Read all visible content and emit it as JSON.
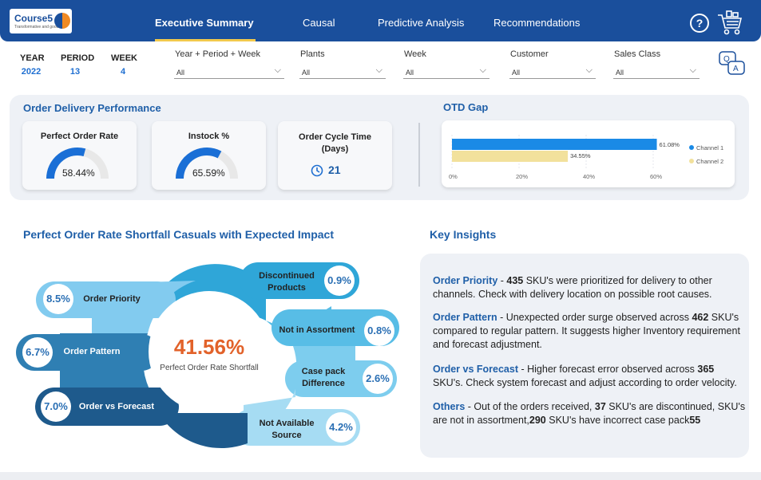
{
  "header": {
    "logo_name": "Course5",
    "logo_tagline": "Transformative and good",
    "tabs": [
      "Executive Summary",
      "Causal",
      "Predictive Analysis",
      "Recommendations"
    ],
    "help": "?"
  },
  "filters": {
    "year": {
      "label": "YEAR",
      "value": "2022"
    },
    "period": {
      "label": "PERIOD",
      "value": "13"
    },
    "week": {
      "label": "WEEK",
      "value": "4"
    },
    "slicers": [
      {
        "label": "Year + Period + Week",
        "value": "All"
      },
      {
        "label": "Plants",
        "value": "All"
      },
      {
        "label": "Week",
        "value": "All"
      },
      {
        "label": "Customer",
        "value": "All"
      },
      {
        "label": "Sales Class",
        "value": "All"
      }
    ],
    "qa_label": "Q A"
  },
  "delivery": {
    "title": "Order Delivery Performance",
    "perfect_order_rate": {
      "title": "Perfect Order Rate",
      "value": "58.44%",
      "fraction": 0.5844
    },
    "instock": {
      "title": "Instock %",
      "value": "65.59%",
      "fraction": 0.6559
    },
    "cycle_time": {
      "title": "Order Cycle Time (Days)",
      "value": "21"
    }
  },
  "otd": {
    "title": "OTD Gap"
  },
  "chart_data": {
    "type": "bar",
    "orientation": "horizontal",
    "title": "OTD Gap",
    "series": [
      {
        "name": "Channel 1",
        "values": [
          61.08
        ],
        "label": "61.08%",
        "color": "#1a8ae6"
      },
      {
        "name": "Channel 2",
        "values": [
          34.55
        ],
        "label": "34.55%",
        "color": "#f2e19c"
      }
    ],
    "xticks": [
      "0%",
      "20%",
      "40%",
      "60%"
    ],
    "xlim": [
      0,
      70
    ],
    "legend": "right"
  },
  "shortfall": {
    "title": "Perfect Order Rate Shortfall Casuals with Expected Impact",
    "center_value": "41.56%",
    "center_label": "Perfect Order Rate Shortfall",
    "left_items": [
      {
        "label": "Order Priority",
        "value": "8.5%"
      },
      {
        "label": "Order Pattern",
        "value": "6.7%"
      },
      {
        "label": "Order vs Forecast",
        "value": "7.0%"
      }
    ],
    "right_items": [
      {
        "label": "Discontinued Products",
        "value": "0.9%"
      },
      {
        "label": "Not in Assortment",
        "value": "0.8%"
      },
      {
        "label": "Case pack Difference",
        "value": "2.6%"
      },
      {
        "label": "Not Available Source",
        "value": "4.2%"
      }
    ]
  },
  "insights": {
    "title": "Key Insights",
    "items": [
      {
        "heading": "Order Priority",
        "pre": " - ",
        "num": "435",
        "text": " SKU's were prioritized for delivery to other channels. Check with delivery location on possible root causes."
      },
      {
        "heading": "Order Pattern",
        "pre": " - Unexpected order surge observed across ",
        "num": "462",
        "text": " SKU's compared to regular pattern. It suggests higher Inventory requirement and forecast adjustment."
      },
      {
        "heading": "Order vs Forecast",
        "pre": " - Higher forecast error observed across ",
        "num": "365",
        "text": " SKU's. Check system forecast and adjust according to order velocity."
      }
    ],
    "others": {
      "heading": "Others",
      "t1": " - Out of the orders received, ",
      "n1": "37",
      "t2": " SKU's are discontinued, SKU's are not in assortment,",
      "n2": "290",
      "t3": " SKU's have incorrect case pack",
      "n3": "55"
    }
  }
}
